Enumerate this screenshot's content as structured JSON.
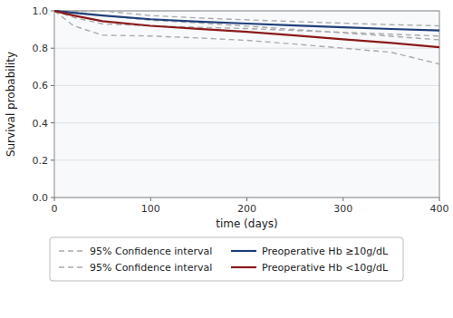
{
  "chart_data": {
    "type": "line",
    "xlabel": "time (days)",
    "ylabel": "Survival probability",
    "x": [
      0,
      20,
      50,
      100,
      150,
      200,
      250,
      300,
      350,
      400
    ],
    "xlim": [
      0,
      400
    ],
    "xticks": [
      0,
      100,
      200,
      300,
      400
    ],
    "ylim": [
      0,
      1.0
    ],
    "yticks": [
      {
        "value": 0,
        "label": "0.0"
      },
      0.2,
      0.4,
      0.6,
      0.8,
      {
        "value": 1.0,
        "label": "1.0"
      }
    ],
    "grid": true,
    "legend": "bottom",
    "series": [
      {
        "name": "95% Confidence interval",
        "color": "#aaaaaa",
        "line_style": "dashed",
        "values": [
          1.0,
          1.0,
          1.0,
          0.975,
          0.962,
          0.952,
          0.943,
          0.934,
          0.926,
          0.92
        ]
      },
      {
        "color": "#aaaaaa",
        "line_style": "dashed",
        "values": [
          1.0,
          0.965,
          0.93,
          0.92,
          0.912,
          0.905,
          0.895,
          0.885,
          0.875,
          0.865
        ]
      },
      {
        "name": "95% Confidence interval",
        "color": "#aaaaaa",
        "line_style": "dashed",
        "values": [
          1.0,
          0.995,
          0.975,
          0.95,
          0.935,
          0.918,
          0.9,
          0.882,
          0.864,
          0.845
        ]
      },
      {
        "color": "#aaaaaa",
        "line_style": "dashed",
        "values": [
          1.0,
          0.92,
          0.87,
          0.865,
          0.855,
          0.842,
          0.822,
          0.8,
          0.778,
          0.715
        ]
      },
      {
        "name": "Preoperative Hb ≥10g/dL",
        "color": "#1f3f7a",
        "line_style": "solid",
        "values": [
          1.0,
          0.99,
          0.975,
          0.955,
          0.942,
          0.932,
          0.922,
          0.912,
          0.903,
          0.895
        ]
      },
      {
        "name": "Preoperative Hb <10g/dL",
        "color": "#8b1a1a",
        "line_style": "solid",
        "values": [
          1.0,
          0.975,
          0.945,
          0.92,
          0.904,
          0.888,
          0.868,
          0.848,
          0.828,
          0.805
        ]
      }
    ]
  }
}
